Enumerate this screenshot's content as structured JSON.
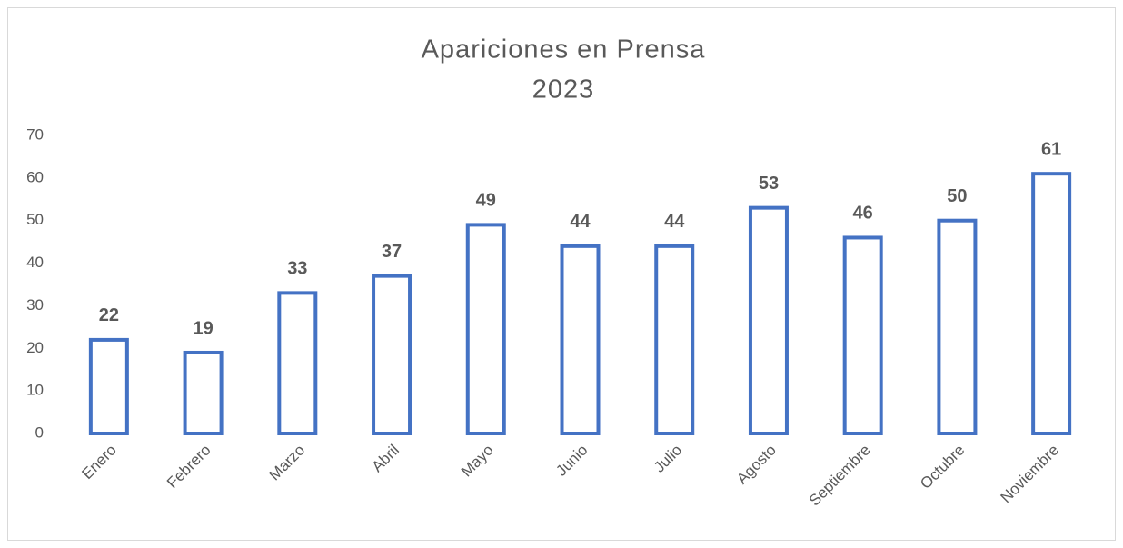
{
  "chart_data": {
    "type": "bar",
    "title": "Apariciones en Prensa",
    "subtitle": "2023",
    "categories": [
      "Enero",
      "Febrero",
      "Marzo",
      "Abril",
      "Mayo",
      "Junio",
      "Julio",
      "Agosto",
      "Septiembre",
      "Octubre",
      "Noviembre"
    ],
    "values": [
      22,
      19,
      33,
      37,
      49,
      44,
      44,
      53,
      46,
      50,
      61
    ],
    "color": "#4472c4",
    "fill": "#ffffff",
    "ylim": [
      0,
      70
    ],
    "yticks": [
      0,
      10,
      20,
      30,
      40,
      50,
      60,
      70
    ],
    "grid": false,
    "data_labels": true
  }
}
